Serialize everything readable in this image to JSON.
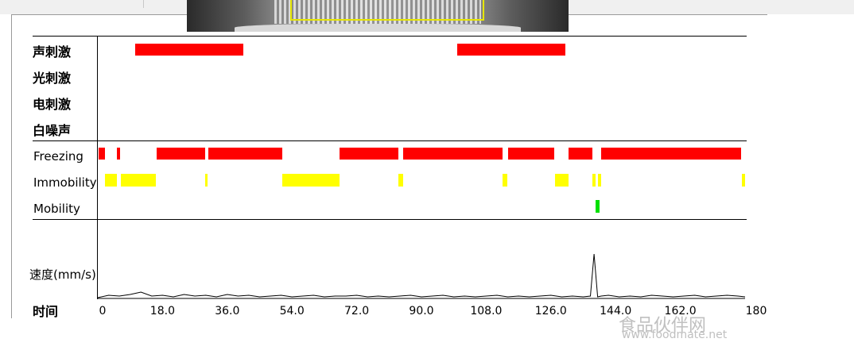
{
  "stimulus_rows": [
    "声刺激",
    "光刺激",
    "电刺激",
    "白噪声"
  ],
  "state_rows": [
    "Freezing",
    "Immobility",
    "Mobility"
  ],
  "speed_label": "速度(mm/s)",
  "time_label": "时间",
  "time_axis": {
    "min": 0,
    "max": 180,
    "ticks": [
      "0",
      "18.0",
      "36.0",
      "54.0",
      "72.0",
      "90.0",
      "108.0",
      "126.0",
      "144.0",
      "162.0",
      "180"
    ]
  },
  "colors": {
    "sound": "#ff0000",
    "freezing": "#ff0000",
    "immobility": "#ffff00",
    "mobility": "#00e000",
    "line": "#000000"
  },
  "chart_data": {
    "type": "timeline",
    "xlabel": "时间",
    "xlim": [
      0,
      180
    ],
    "events": {
      "声刺激": [
        [
          10.5,
          40.5
        ],
        [
          100.0,
          130.0
        ]
      ],
      "光刺激": [],
      "电刺激": [],
      "白噪声": []
    },
    "states": {
      "Freezing": [
        [
          0.2,
          2.0
        ],
        [
          5.3,
          6.3
        ],
        [
          16.3,
          29.8
        ],
        [
          30.7,
          51.3
        ],
        [
          67.3,
          83.5
        ],
        [
          85.0,
          112.5
        ],
        [
          114.0,
          127.0
        ],
        [
          131.0,
          137.5
        ],
        [
          140.0,
          179.0
        ]
      ],
      "Immobility": [
        [
          2.1,
          5.2
        ],
        [
          6.4,
          16.2
        ],
        [
          29.9,
          30.6
        ],
        [
          51.4,
          67.2
        ],
        [
          83.6,
          84.9
        ],
        [
          112.6,
          113.9
        ],
        [
          127.1,
          130.9
        ],
        [
          137.6,
          138.5
        ],
        [
          139.0,
          139.9
        ],
        [
          179.1,
          180.0
        ]
      ],
      "Mobility": [
        [
          138.5,
          139.5
        ]
      ]
    },
    "speed": {
      "name": "速度(mm/s)",
      "x": [
        0,
        3,
        6,
        9,
        12,
        15,
        18,
        21,
        24,
        27,
        30,
        33,
        36,
        39,
        42,
        45,
        48,
        51,
        54,
        57,
        60,
        63,
        66,
        69,
        72,
        75,
        78,
        81,
        84,
        87,
        90,
        93,
        96,
        99,
        102,
        105,
        108,
        111,
        114,
        117,
        120,
        123,
        126,
        129,
        132,
        135,
        137,
        138,
        139,
        140,
        142,
        145,
        148,
        151,
        154,
        157,
        160,
        163,
        166,
        169,
        172,
        175,
        178,
        180
      ],
      "y": [
        1,
        4,
        3,
        5,
        8,
        3,
        4,
        2,
        5,
        3,
        4,
        2,
        5,
        3,
        4,
        2,
        3,
        4,
        2,
        3,
        4,
        2,
        3,
        3,
        4,
        2,
        3,
        2,
        3,
        4,
        2,
        3,
        4,
        2,
        3,
        2,
        3,
        4,
        2,
        3,
        2,
        3,
        4,
        2,
        3,
        2,
        3,
        56,
        2,
        3,
        4,
        2,
        3,
        2,
        4,
        3,
        2,
        3,
        4,
        2,
        3,
        4,
        3,
        2
      ],
      "ylim": [
        0,
        60
      ]
    }
  },
  "watermark": {
    "title": "食品伙伴网",
    "url": "www.foodmate.net"
  }
}
